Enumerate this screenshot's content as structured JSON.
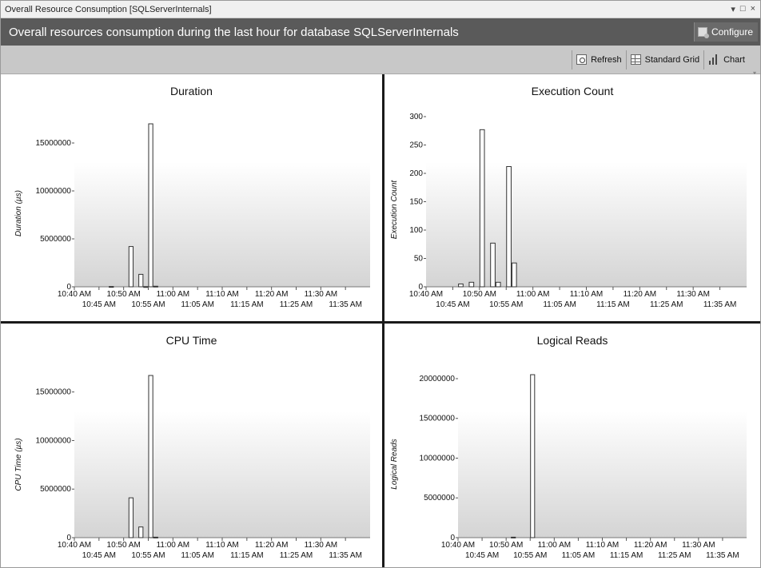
{
  "window": {
    "title": "Overall Resource Consumption [SQLServerInternals]",
    "controls": {
      "dropdown": "▾",
      "maximize": "□",
      "close": "×"
    }
  },
  "header": {
    "title": "Overall resources consumption during the last hour for database SQLServerInternals",
    "configure_label": "Configure"
  },
  "toolbar": {
    "refresh_label": "Refresh",
    "standard_grid_label": "Standard Grid",
    "chart_label": "Chart"
  },
  "chart_data": [
    {
      "type": "bar",
      "title": "Duration",
      "ylabel": "Duration (µs)",
      "ylim": [
        0,
        17000000
      ],
      "yticks": [
        0,
        5000000,
        10000000,
        15000000
      ],
      "ytick_labels": [
        "0",
        "5000000",
        "10000000",
        "15000000"
      ],
      "xtick_labels_top": [
        "10:40 AM",
        "10:50 AM",
        "11:00 AM",
        "11:10 AM",
        "11:20 AM",
        "11:30 AM"
      ],
      "xtick_labels_bottom": [
        "10:45 AM",
        "10:55 AM",
        "11:05 AM",
        "11:15 AM",
        "11:25 AM",
        "11:35 AM"
      ],
      "bars": [
        {
          "minute": 47.5,
          "value": 30000
        },
        {
          "minute": 51.5,
          "value": 4200000
        },
        {
          "minute": 53.5,
          "value": 1300000
        },
        {
          "minute": 54.5,
          "value": 20000
        },
        {
          "minute": 55.5,
          "value": 17000000
        },
        {
          "minute": 56.5,
          "value": 60000
        }
      ]
    },
    {
      "type": "bar",
      "title": "Execution Count",
      "ylabel": "Execution Count",
      "ylim": [
        0,
        300
      ],
      "yticks": [
        0,
        50,
        100,
        150,
        200,
        250,
        300
      ],
      "ytick_labels": [
        "0",
        "50",
        "100",
        "150",
        "200",
        "250",
        "300"
      ],
      "xtick_labels_top": [
        "10:40 AM",
        "10:50 AM",
        "11:00 AM",
        "11:10 AM",
        "11:20 AM",
        "11:30 AM"
      ],
      "xtick_labels_bottom": [
        "10:45 AM",
        "10:55 AM",
        "11:05 AM",
        "11:15 AM",
        "11:25 AM",
        "11:35 AM"
      ],
      "bars": [
        {
          "minute": 46.5,
          "value": 5
        },
        {
          "minute": 48.5,
          "value": 8
        },
        {
          "minute": 50.5,
          "value": 277
        },
        {
          "minute": 52.5,
          "value": 77
        },
        {
          "minute": 53.5,
          "value": 8
        },
        {
          "minute": 55.5,
          "value": 212
        },
        {
          "minute": 56.5,
          "value": 42
        }
      ]
    },
    {
      "type": "bar",
      "title": "CPU Time",
      "ylabel": "CPU Time (µs)",
      "ylim": [
        0,
        16700000
      ],
      "yticks": [
        0,
        5000000,
        10000000,
        15000000
      ],
      "ytick_labels": [
        "0",
        "5000000",
        "10000000",
        "15000000"
      ],
      "xtick_labels_top": [
        "10:40 AM",
        "10:50 AM",
        "11:00 AM",
        "11:10 AM",
        "11:20 AM",
        "11:30 AM"
      ],
      "xtick_labels_bottom": [
        "10:45 AM",
        "10:55 AM",
        "11:05 AM",
        "11:15 AM",
        "11:25 AM",
        "11:35 AM"
      ],
      "bars": [
        {
          "minute": 51.5,
          "value": 4100000
        },
        {
          "minute": 53.5,
          "value": 1100000
        },
        {
          "minute": 55.5,
          "value": 16700000
        },
        {
          "minute": 56.5,
          "value": 50000
        }
      ]
    },
    {
      "type": "bar",
      "title": "Logical Reads",
      "ylabel": "Logical Reads",
      "ylim": [
        0,
        20500000
      ],
      "yticks": [
        0,
        5000000,
        10000000,
        15000000,
        20000000
      ],
      "ytick_labels": [
        "0",
        "5000000",
        "10000000",
        "15000000",
        "20000000"
      ],
      "xtick_labels_top": [
        "10:40 AM",
        "10:50 AM",
        "11:00 AM",
        "11:10 AM",
        "11:20 AM",
        "11:30 AM"
      ],
      "xtick_labels_bottom": [
        "10:45 AM",
        "10:55 AM",
        "11:05 AM",
        "11:15 AM",
        "11:25 AM",
        "11:35 AM"
      ],
      "bars": [
        {
          "minute": 51.5,
          "value": 60000
        },
        {
          "minute": 55.5,
          "value": 20500000
        }
      ]
    }
  ]
}
